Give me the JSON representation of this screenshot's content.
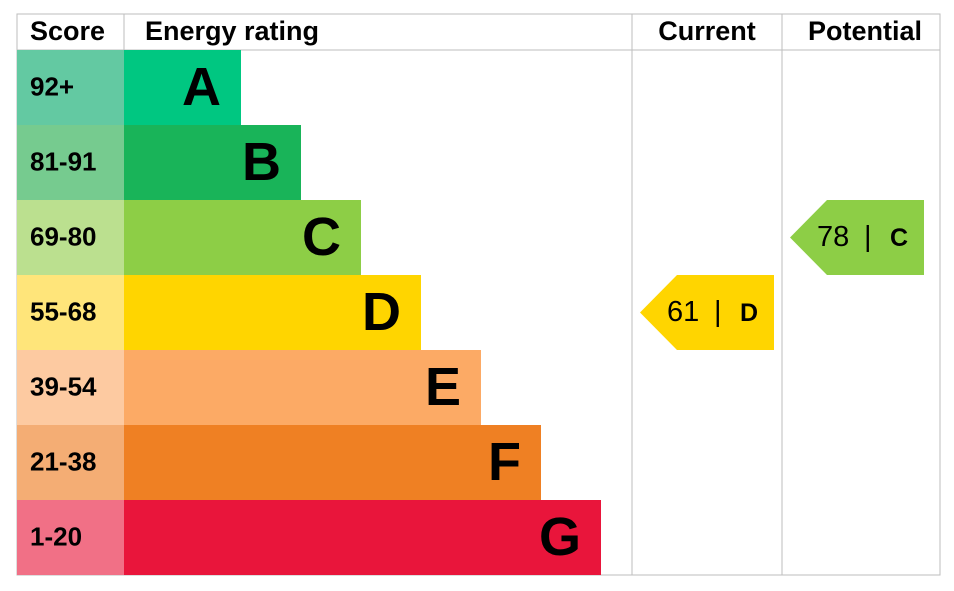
{
  "header": {
    "score": "Score",
    "rating": "Energy rating",
    "current": "Current",
    "potential": "Potential"
  },
  "bands": [
    {
      "score": "92+",
      "letter": "A",
      "color": "#00c781",
      "tint": "#63c9a2"
    },
    {
      "score": "81-91",
      "letter": "B",
      "color": "#19b459",
      "tint": "#76cb8f"
    },
    {
      "score": "69-80",
      "letter": "C",
      "color": "#8dce46",
      "tint": "#bbe08f"
    },
    {
      "score": "55-68",
      "letter": "D",
      "color": "#ffd500",
      "tint": "#ffe57a"
    },
    {
      "score": "39-54",
      "letter": "E",
      "color": "#fcaa65",
      "tint": "#fdcaa1"
    },
    {
      "score": "21-38",
      "letter": "F",
      "color": "#ef8023",
      "tint": "#f4ad74"
    },
    {
      "score": "1-20",
      "letter": "G",
      "color": "#e9153b",
      "tint": "#f17086"
    }
  ],
  "current": {
    "score": 61,
    "separator": "|",
    "rating": "D"
  },
  "potential": {
    "score": 78,
    "separator": "|",
    "rating": "C"
  }
}
